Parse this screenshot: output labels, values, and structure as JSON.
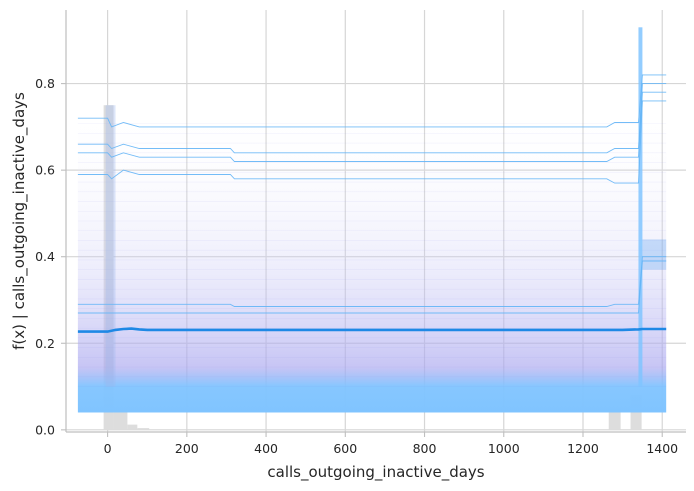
{
  "chart_data": {
    "type": "line",
    "xlabel": "calls_outgoing_inactive_days",
    "ylabel": "f(x) | calls_outgoing_inactive_days",
    "xlim": [
      -105,
      1460
    ],
    "ylim": [
      -0.005,
      0.97
    ],
    "x_ticks": [
      0,
      200,
      400,
      600,
      800,
      1000,
      1200,
      1400
    ],
    "y_ticks": [
      0.0,
      0.2,
      0.4,
      0.6,
      0.8
    ],
    "x_tick_labels": [
      "0",
      "200",
      "400",
      "600",
      "800",
      "1000",
      "1200",
      "1400"
    ],
    "y_tick_labels": [
      "0.0",
      "0.2",
      "0.4",
      "0.6",
      "0.8"
    ],
    "grid": true,
    "series": [
      {
        "role": "average",
        "color": "#1e88e5",
        "x": [
          -75,
          0,
          20,
          40,
          60,
          80,
          100,
          200,
          400,
          600,
          800,
          1000,
          1200,
          1300,
          1340,
          1350,
          1410
        ],
        "y": [
          0.227,
          0.227,
          0.231,
          0.233,
          0.234,
          0.232,
          0.231,
          0.231,
          0.231,
          0.231,
          0.231,
          0.231,
          0.231,
          0.231,
          0.232,
          0.233,
          0.233
        ]
      },
      {
        "role": "individual-high",
        "color": "#64b5f6",
        "x": [
          -75,
          0,
          10,
          40,
          80,
          310,
          320,
          1260,
          1280,
          1340,
          1350,
          1410
        ],
        "y": [
          0.72,
          0.72,
          0.7,
          0.71,
          0.7,
          0.7,
          0.7,
          0.7,
          0.71,
          0.71,
          0.82,
          0.82
        ]
      },
      {
        "role": "individual-high",
        "color": "#64b5f6",
        "x": [
          -75,
          0,
          10,
          40,
          80,
          310,
          320,
          1260,
          1280,
          1340,
          1350,
          1410
        ],
        "y": [
          0.66,
          0.66,
          0.65,
          0.66,
          0.65,
          0.65,
          0.64,
          0.64,
          0.65,
          0.65,
          0.8,
          0.8
        ]
      },
      {
        "role": "individual-high",
        "color": "#64b5f6",
        "x": [
          -75,
          0,
          10,
          40,
          80,
          310,
          320,
          1260,
          1280,
          1340,
          1350,
          1410
        ],
        "y": [
          0.64,
          0.64,
          0.63,
          0.64,
          0.63,
          0.63,
          0.62,
          0.62,
          0.63,
          0.63,
          0.78,
          0.78
        ]
      },
      {
        "role": "individual-high",
        "color": "#64b5f6",
        "x": [
          -75,
          0,
          10,
          40,
          80,
          310,
          320,
          1260,
          1280,
          1340,
          1350,
          1410
        ],
        "y": [
          0.59,
          0.59,
          0.58,
          0.6,
          0.59,
          0.59,
          0.58,
          0.58,
          0.57,
          0.57,
          0.76,
          0.76
        ]
      },
      {
        "role": "individual-mid",
        "color": "#64b5f6",
        "x": [
          -75,
          0,
          10,
          40,
          80,
          310,
          320,
          1260,
          1280,
          1340,
          1350,
          1410
        ],
        "y": [
          0.29,
          0.29,
          0.29,
          0.29,
          0.29,
          0.29,
          0.285,
          0.285,
          0.29,
          0.29,
          0.4,
          0.4
        ]
      },
      {
        "role": "individual-mid",
        "color": "#64b5f6",
        "x": [
          -75,
          0,
          10,
          40,
          80,
          310,
          320,
          1260,
          1280,
          1340,
          1350,
          1410
        ],
        "y": [
          0.27,
          0.27,
          0.27,
          0.27,
          0.27,
          0.27,
          0.27,
          0.27,
          0.27,
          0.27,
          0.39,
          0.39
        ]
      }
    ],
    "ice_band": {
      "color_top": "#c8c8f5",
      "color_bottom": "#80c4ff",
      "x": [
        -75,
        1410
      ],
      "y_top": [
        0.73,
        0.745
      ],
      "y_dense_top": 0.1,
      "y_bottom": 0.04
    },
    "histogram": {
      "color": "#dddddd",
      "bins": [
        {
          "x0": -10,
          "x1": 15,
          "height": 0.75
        },
        {
          "x0": 15,
          "x1": 50,
          "height": 0.04
        },
        {
          "x0": 50,
          "x1": 75,
          "height": 0.012
        },
        {
          "x0": 75,
          "x1": 105,
          "height": 0.004
        },
        {
          "x0": 1265,
          "x1": 1295,
          "height": 0.05
        },
        {
          "x0": 1320,
          "x1": 1348,
          "height": 0.08
        }
      ]
    }
  }
}
